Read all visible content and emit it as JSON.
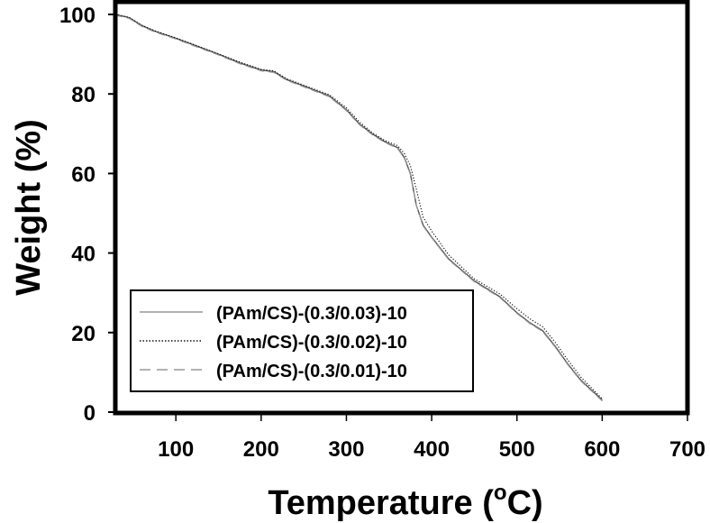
{
  "chart_data": {
    "type": "line",
    "title": "",
    "xlabel": "Temperature (°C)",
    "xlabel_parts": {
      "main": "Temperature (",
      "sup": "o",
      "unit": "C)"
    },
    "ylabel": "Weight (%)",
    "xlim": [
      29,
      700
    ],
    "ylim": [
      0,
      100
    ],
    "xticks": [
      100,
      200,
      300,
      400,
      500,
      600,
      700
    ],
    "yticks": [
      0,
      20,
      40,
      60,
      80,
      100
    ],
    "grid": false,
    "legend_position": "lower left",
    "series": [
      {
        "name": "(PAm/CS)-(0.3/0.03)-10",
        "style": "solid",
        "color": "#555555",
        "x": [
          29,
          45,
          60,
          75,
          100,
          125,
          150,
          175,
          200,
          215,
          230,
          250,
          280,
          300,
          315,
          330,
          345,
          360,
          368,
          375,
          382,
          390,
          400,
          420,
          450,
          480,
          500,
          515,
          530,
          545,
          560,
          575,
          590,
          600
        ],
        "y": [
          100,
          99.2,
          97.2,
          95.8,
          94,
          92,
          90,
          87.8,
          86,
          85.6,
          83.6,
          82,
          79.5,
          76,
          72.5,
          70,
          68,
          66.5,
          64,
          60,
          52,
          47,
          44,
          38.5,
          33,
          29,
          25,
          22.5,
          20.5,
          16.5,
          12,
          8,
          5,
          3
        ]
      },
      {
        "name": "(PAm/CS)-(0.3/0.02)-10",
        "style": "dotted",
        "color": "#111111",
        "x": [
          29,
          45,
          60,
          75,
          100,
          125,
          150,
          175,
          200,
          215,
          230,
          250,
          280,
          300,
          315,
          330,
          345,
          360,
          368,
          375,
          382,
          390,
          400,
          420,
          450,
          480,
          500,
          515,
          530,
          545,
          560,
          575,
          590,
          600
        ],
        "y": [
          100,
          99.3,
          97.3,
          95.9,
          94.1,
          92.1,
          90.1,
          88,
          86.2,
          85.8,
          83.8,
          82.2,
          79.8,
          76.5,
          73,
          70.3,
          68.3,
          67,
          65,
          62,
          56,
          49,
          45.5,
          39.5,
          33.5,
          29.7,
          26,
          23.5,
          21.5,
          17.5,
          13,
          8.8,
          5.5,
          3.3
        ]
      },
      {
        "name": "(PAm/CS)-(0.3/0.01)-10",
        "style": "dashed",
        "color": "#999999",
        "x": [
          29,
          45,
          60,
          75,
          100,
          125,
          150,
          175,
          200,
          215,
          230,
          250,
          280,
          300,
          315,
          330,
          345,
          360,
          368,
          375,
          382,
          390,
          400,
          420,
          450,
          480,
          500,
          515,
          530,
          545,
          560,
          575,
          590,
          600
        ],
        "y": [
          99.8,
          99,
          97,
          95.6,
          93.8,
          91.8,
          89.8,
          87.6,
          85.8,
          85.4,
          83.4,
          81.8,
          79.3,
          75.8,
          72.3,
          69.8,
          67.8,
          66.3,
          63.8,
          59.8,
          52,
          46.8,
          43.8,
          38.3,
          32.8,
          28.8,
          24.8,
          22.3,
          20.3,
          16.3,
          11.8,
          7.8,
          4.8,
          2.8
        ]
      }
    ]
  }
}
